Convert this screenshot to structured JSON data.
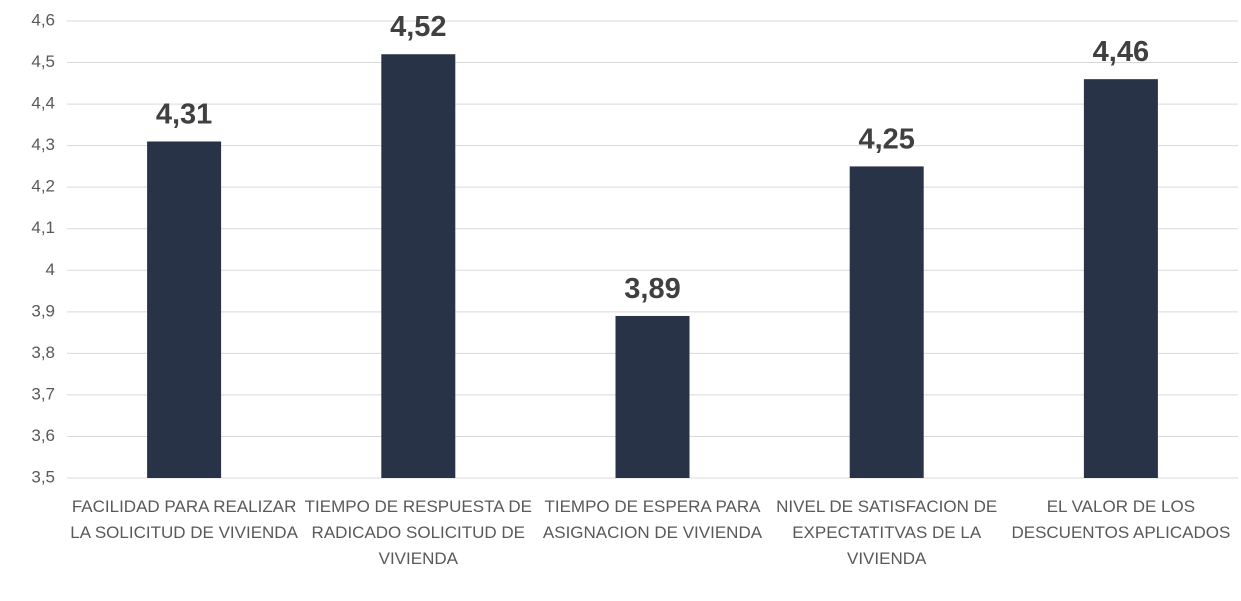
{
  "chart_data": {
    "type": "bar",
    "categories": [
      "FACILIDAD PARA REALIZAR LA SOLICITUD DE VIVIENDA",
      "TIEMPO DE RESPUESTA DE RADICADO SOLICITUD DE VIVIENDA",
      "TIEMPO DE ESPERA PARA ASIGNACION DE VIVIENDA",
      "NIVEL DE SATISFACION DE EXPECTATITVAS DE LA VIVIENDA",
      "EL VALOR DE LOS DESCUENTOS APLICADOS"
    ],
    "values": [
      4.31,
      4.52,
      3.89,
      4.25,
      4.46
    ],
    "value_labels": [
      "4,31",
      "4,52",
      "3,89",
      "4,25",
      "4,46"
    ],
    "color": "#293347",
    "ylim": [
      3.5,
      4.6
    ],
    "yticks": [
      {
        "value": 3.5,
        "label": "3,5"
      },
      {
        "value": 3.6,
        "label": "3,6"
      },
      {
        "value": 3.7,
        "label": "3,7"
      },
      {
        "value": 3.8,
        "label": "3,8"
      },
      {
        "value": 3.9,
        "label": "3,9"
      },
      4,
      {
        "value": 4.1,
        "label": "4,1"
      },
      {
        "value": 4.2,
        "label": "4,2"
      },
      {
        "value": 4.3,
        "label": "4,3"
      },
      {
        "value": 4.4,
        "label": "4,4"
      },
      {
        "value": 4.5,
        "label": "4,5"
      },
      {
        "value": 4.6,
        "label": "4,6"
      }
    ],
    "grid": true
  }
}
